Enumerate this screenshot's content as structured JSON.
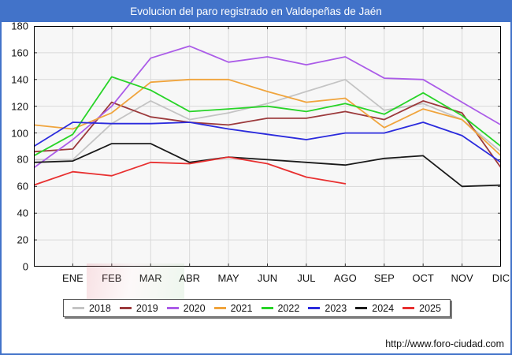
{
  "window": {
    "footer_url": "http://www.foro-ciudad.com"
  },
  "chart_data": {
    "type": "line",
    "title": "Evolucion del paro registrado en Valdepeñas de Jaén",
    "legend_position": "bottom",
    "grid": true,
    "x_axis": {
      "note": "first unlabeled point at left border is December of previous year",
      "categories": [
        "",
        "ENE",
        "FEB",
        "MAR",
        "ABR",
        "MAY",
        "JUN",
        "JUL",
        "AGO",
        "SEP",
        "OCT",
        "NOV",
        "DIC"
      ]
    },
    "y_axis": {
      "min": 0,
      "max": 180,
      "step": 20,
      "ticks": [
        0,
        20,
        40,
        60,
        80,
        100,
        120,
        140,
        160,
        180
      ]
    },
    "series": [
      {
        "name": "2018",
        "color": "#c4c4c4",
        "values": [
          80,
          80,
          107,
          124,
          110,
          115,
          122,
          131,
          140,
          117,
          122,
          110,
          86
        ]
      },
      {
        "name": "2019",
        "color": "#9c3a3c",
        "values": [
          86,
          88,
          123,
          112,
          108,
          106,
          111,
          111,
          116,
          110,
          124,
          115,
          74
        ]
      },
      {
        "name": "2020",
        "color": "#ab5ce8",
        "values": [
          74,
          95,
          120,
          156,
          165,
          153,
          157,
          151,
          157,
          141,
          140,
          123,
          106
        ]
      },
      {
        "name": "2021",
        "color": "#f0a43c",
        "values": [
          106,
          103,
          115,
          138,
          140,
          140,
          131,
          123,
          126,
          104,
          118,
          110,
          83
        ]
      },
      {
        "name": "2022",
        "color": "#28d428",
        "values": [
          83,
          99,
          142,
          132,
          116,
          118,
          120,
          116,
          122,
          114,
          130,
          113,
          90
        ]
      },
      {
        "name": "2023",
        "color": "#2b2bdd",
        "values": [
          90,
          108,
          107,
          107,
          108,
          103,
          99,
          95,
          100,
          100,
          108,
          98,
          78
        ]
      },
      {
        "name": "2024",
        "color": "#1a1a1a",
        "values": [
          78,
          79,
          92,
          92,
          78,
          82,
          80,
          78,
          76,
          81,
          83,
          60,
          61
        ]
      },
      {
        "name": "2025",
        "color": "#e83030",
        "values": [
          61,
          71,
          68,
          78,
          77,
          82,
          77,
          67,
          62
        ]
      }
    ]
  }
}
